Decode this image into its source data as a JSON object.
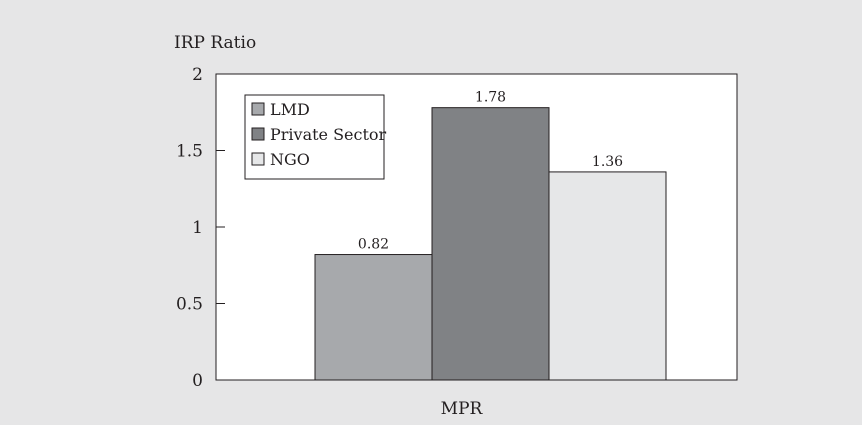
{
  "chart_data": {
    "type": "bar",
    "title": "",
    "ylabel": "IRP Ratio",
    "xlabel": "",
    "categories": [
      "MPR"
    ],
    "ylim": [
      0,
      2
    ],
    "yticks": [
      "0",
      "0.5",
      "1",
      "1.5",
      "2"
    ],
    "ytick_values": [
      0,
      0.5,
      1,
      1.5,
      2
    ],
    "grid": false,
    "legend_position": "top-left",
    "series": [
      {
        "name": "LMD",
        "values": [
          0.82
        ],
        "value_labels": [
          "0.82"
        ],
        "color": "#a7a9ac"
      },
      {
        "name": "Private Sector",
        "values": [
          1.78
        ],
        "value_labels": [
          "1.78"
        ],
        "color": "#808285"
      },
      {
        "name": "NGO",
        "values": [
          1.36
        ],
        "value_labels": [
          "1.36"
        ],
        "color": "#e6e7e8"
      }
    ]
  }
}
